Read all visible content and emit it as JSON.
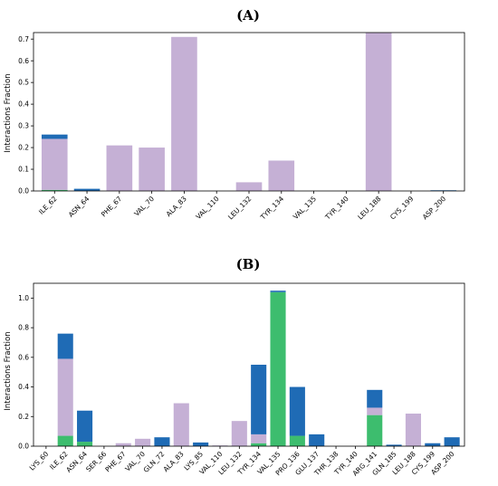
{
  "colors": {
    "hydrophobic": "#c5b0d5",
    "water_bridges": "#1f6bb5",
    "h_bonds": "#3dbd6e"
  },
  "chart_data": [
    {
      "type": "bar",
      "stacked": true,
      "title": "(A)",
      "ylabel": "Interactions Fraction",
      "ylim": [
        0,
        0.73
      ],
      "yticks": [
        "0.0",
        "0.1",
        "0.2",
        "0.3",
        "0.4",
        "0.5",
        "0.6",
        "0.7"
      ],
      "ytick_values": [
        0,
        0.1,
        0.2,
        0.3,
        0.4,
        0.5,
        0.6,
        0.7
      ],
      "categories": [
        "ILE_62",
        "ASN_64",
        "PHE_67",
        "VAL_70",
        "ALA_83",
        "VAL_110",
        "LEU_132",
        "TYR_134",
        "VAL_135",
        "TYR_140",
        "LEU_188",
        "CYS_199",
        "ASP_200"
      ],
      "series": [
        {
          "color_key": "h_bonds",
          "values": [
            0.005,
            0,
            0,
            0,
            0,
            0,
            0,
            0,
            0,
            0,
            0,
            0,
            0
          ]
        },
        {
          "color_key": "hydrophobic",
          "values": [
            0.235,
            0,
            0.21,
            0.2,
            0.71,
            0,
            0.04,
            0.14,
            0,
            0,
            0.73,
            0,
            0
          ]
        },
        {
          "color_key": "water_bridges",
          "values": [
            0.02,
            0.01,
            0,
            0,
            0,
            0,
            0,
            0,
            0,
            0,
            0,
            0,
            0.003
          ]
        }
      ]
    },
    {
      "type": "bar",
      "stacked": true,
      "title": "(B)",
      "ylabel": "Interactions Fraction",
      "ylim": [
        0,
        1.1
      ],
      "yticks": [
        "0.0",
        "0.2",
        "0.4",
        "0.6",
        "0.8",
        "1.0"
      ],
      "ytick_values": [
        0,
        0.2,
        0.4,
        0.6,
        0.8,
        1.0
      ],
      "categories": [
        "LYS_60",
        "ILE_62",
        "ASN_64",
        "SER_66",
        "PHE_67",
        "VAL_70",
        "GLN_72",
        "ALA_83",
        "LYS_85",
        "VAL_110",
        "LEU_132",
        "TYR_134",
        "VAL_135",
        "PRO_136",
        "GLU_137",
        "THR_138",
        "TYR_140",
        "ARG_141",
        "GLN_185",
        "LEU_188",
        "CYS_199",
        "ASP_200"
      ],
      "series": [
        {
          "color_key": "h_bonds",
          "values": [
            0,
            0.07,
            0.03,
            0,
            0,
            0,
            0,
            0,
            0,
            0,
            0,
            0.02,
            1.04,
            0.07,
            0,
            0,
            0,
            0.21,
            0,
            0,
            0,
            0
          ]
        },
        {
          "color_key": "hydrophobic",
          "values": [
            0,
            0.52,
            0,
            0,
            0.02,
            0.05,
            0,
            0.29,
            0,
            0.005,
            0.17,
            0.06,
            0,
            0,
            0,
            0,
            0,
            0.05,
            0,
            0.22,
            0,
            0
          ]
        },
        {
          "color_key": "water_bridges",
          "values": [
            0,
            0.17,
            0.21,
            0,
            0,
            0,
            0.06,
            0,
            0.025,
            0,
            0,
            0.47,
            0.01,
            0.33,
            0.08,
            0,
            0,
            0.12,
            0.01,
            0,
            0.02,
            0.06
          ]
        }
      ]
    }
  ]
}
